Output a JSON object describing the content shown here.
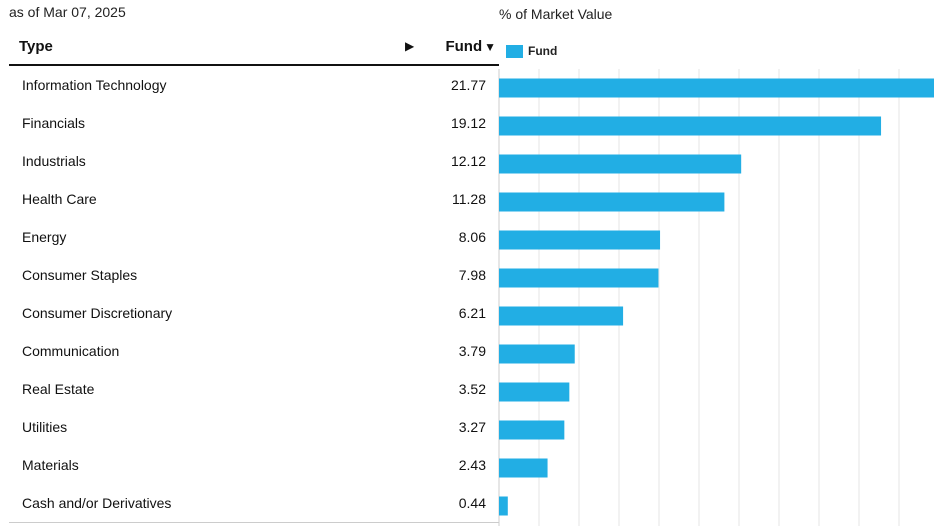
{
  "as_of": "as of Mar 07, 2025",
  "table": {
    "col_type": "Type",
    "sort_icon": "play-arrow-icon",
    "col_fund": "Fund",
    "col_fund_icon": "caret-down-icon"
  },
  "colors": {
    "bar": "#22aee4",
    "grid": "#e6e6e6"
  },
  "chart_data": {
    "type": "bar",
    "orientation": "horizontal",
    "title": "% of Market Value",
    "legend": [
      "Fund"
    ],
    "legend_placement": "top-left",
    "grid": true,
    "xlim": [
      0,
      21.77
    ],
    "categories": [
      "Information Technology",
      "Financials",
      "Industrials",
      "Health Care",
      "Energy",
      "Consumer Staples",
      "Consumer Discretionary",
      "Communication",
      "Real Estate",
      "Utilities",
      "Materials",
      "Cash and/or Derivatives"
    ],
    "series": [
      {
        "name": "Fund",
        "values": [
          21.77,
          19.12,
          12.12,
          11.28,
          8.06,
          7.98,
          6.21,
          3.79,
          3.52,
          3.27,
          2.43,
          0.44
        ]
      }
    ],
    "value_labels": [
      "21.77",
      "19.12",
      "12.12",
      "11.28",
      "8.06",
      "7.98",
      "6.21",
      "3.79",
      "3.52",
      "3.27",
      "2.43",
      "0.44"
    ]
  }
}
